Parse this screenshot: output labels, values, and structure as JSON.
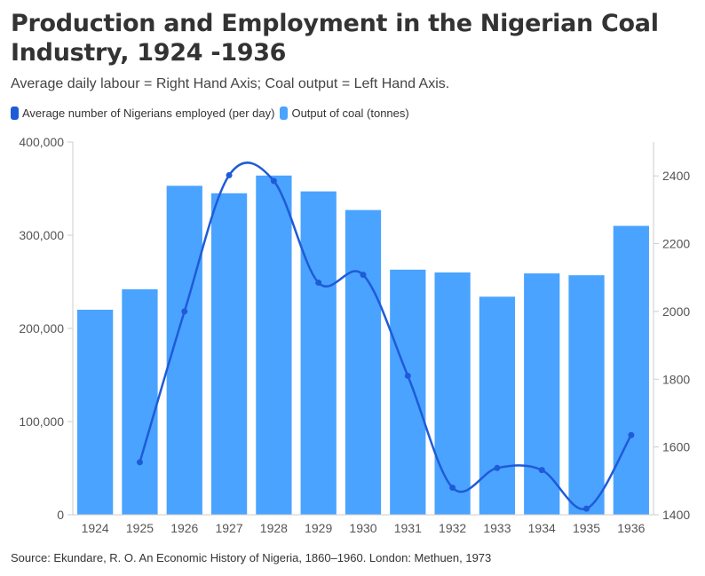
{
  "header": {
    "title": "Production and Employment in the Nigerian Coal Industry, 1924 -1936",
    "subtitle": "Average daily labour = Right Hand Axis; Coal output = Left Hand Axis."
  },
  "legend": {
    "line_label": "Average number of Nigerians employed (per day)",
    "bar_label": "Output of coal (tonnes)"
  },
  "footer": {
    "source": "Source: Ekundare, R. O. An Economic History of Nigeria, 1860–1960. London: Methuen, 1973"
  },
  "colors": {
    "bar": "#4aa3ff",
    "line": "#1f5bd8",
    "grid": "#e6e6e6",
    "axis": "#cccccc"
  },
  "chart_data": {
    "type": "bar",
    "title": "Production and Employment in the Nigerian Coal Industry, 1924 -1936",
    "categories": [
      "1924",
      "1925",
      "1926",
      "1927",
      "1928",
      "1929",
      "1930",
      "1931",
      "1932",
      "1933",
      "1934",
      "1935",
      "1936"
    ],
    "series": [
      {
        "name": "Output of coal (tonnes)",
        "type": "bar",
        "axis": "left",
        "values": [
          220000,
          242000,
          353000,
          345000,
          364000,
          347000,
          327000,
          263000,
          260000,
          234000,
          259000,
          257000,
          310000
        ]
      },
      {
        "name": "Average number of Nigerians employed (per day)",
        "type": "line",
        "smooth": true,
        "axis": "right",
        "values": [
          null,
          1555,
          2000,
          2402,
          2385,
          2085,
          2108,
          1810,
          1480,
          1538,
          1532,
          1418,
          1635
        ]
      }
    ],
    "y_left": {
      "ylim": [
        0,
        400000
      ],
      "ticks": [
        0,
        100000,
        200000,
        300000,
        400000
      ],
      "tick_labels": [
        "0",
        "100,000",
        "200,000",
        "300,000",
        "400,000"
      ]
    },
    "y_right": {
      "ylim": [
        1400,
        2500
      ],
      "ticks": [
        1400,
        1600,
        1800,
        2000,
        2200,
        2400
      ],
      "tick_labels": [
        "1400",
        "1600",
        "1800",
        "2000",
        "2200",
        "2400"
      ]
    },
    "grid": false,
    "legend_position": "top-left"
  }
}
